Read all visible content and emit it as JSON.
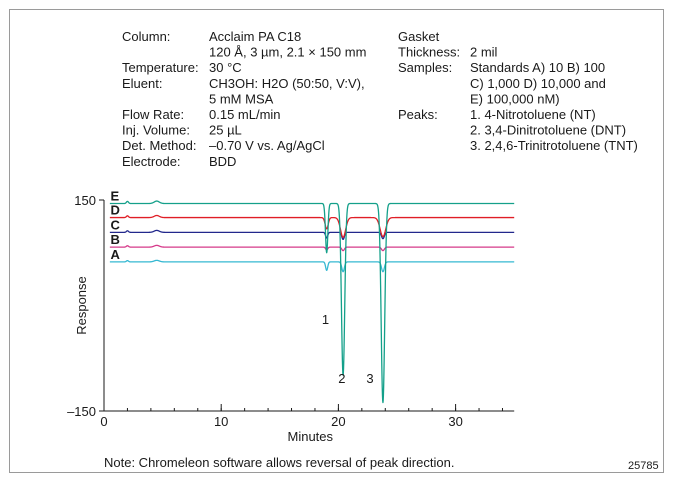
{
  "conditions": [
    {
      "label": "Column:",
      "lines": [
        "Acclaim PA C18",
        "120 Å, 3 µm, 2.1 × 150 mm"
      ]
    },
    {
      "label": "Temperature:",
      "lines": [
        "30 °C"
      ]
    },
    {
      "label": "Eluent:",
      "lines": [
        "CH3OH: H2O (50:50, V:V),",
        "5 mM MSA"
      ]
    },
    {
      "label": "Flow Rate:",
      "lines": [
        "0.15 mL/min"
      ]
    },
    {
      "label": "Inj. Volume:",
      "lines": [
        "25 µL"
      ]
    },
    {
      "label": "Det. Method:",
      "lines": [
        "–0.70 V vs. Ag/AgCl"
      ]
    },
    {
      "label": "Electrode:",
      "lines": [
        "BDD"
      ]
    }
  ],
  "conditions_right": [
    {
      "label": "Gasket",
      "lines": []
    },
    {
      "label": "Thickness:",
      "lines": [
        "2 mil"
      ]
    },
    {
      "label": "Samples:",
      "lines": [
        "Standards A) 10 B) 100",
        "C) 1,000 D) 10,000 and",
        "E) 100,000 nM)"
      ]
    },
    {
      "label": "Peaks:",
      "lines": [
        "1. 4-Nitrotoluene (NT)",
        "2. 3,4-Dinitrotoluene (DNT)",
        "3. 2,4,6-Trinitrotoluene (TNT)"
      ]
    }
  ],
  "note": "Note: Chromeleon software allows reversal of peak direction.",
  "figure_id": "25785",
  "chart_data": {
    "type": "line",
    "xlabel": "Minutes",
    "ylabel": "Response",
    "xlim": [
      0,
      35
    ],
    "ylim": [
      -150,
      150
    ],
    "x_ticks": [
      0,
      10,
      20,
      30
    ],
    "y_tick_labels": [
      "150",
      "–150"
    ],
    "y_ticks": [
      150,
      -150
    ],
    "grid": false,
    "series": [
      {
        "name": "A",
        "color": "#36b8d2",
        "baseline": 62,
        "peaks": [
          [
            2.0,
            1.8,
            0.09
          ],
          [
            4.5,
            2.2,
            0.22
          ],
          [
            19.0,
            -12,
            0.09
          ],
          [
            20.4,
            -14,
            0.11
          ],
          [
            23.8,
            -14,
            0.12
          ]
        ]
      },
      {
        "name": "B",
        "color": "#d63a8a",
        "baseline": 83,
        "peaks": [
          [
            2.0,
            2.0,
            0.09
          ],
          [
            4.5,
            2.5,
            0.22
          ],
          [
            19.0,
            -4,
            0.09
          ],
          [
            20.4,
            -5,
            0.11
          ],
          [
            23.8,
            -5,
            0.12
          ]
        ]
      },
      {
        "name": "C",
        "color": "#22288c",
        "baseline": 104,
        "peaks": [
          [
            2.0,
            2.2,
            0.09
          ],
          [
            4.5,
            2.8,
            0.22
          ],
          [
            19.0,
            -8,
            0.09
          ],
          [
            20.4,
            -10,
            0.11
          ],
          [
            23.8,
            -9,
            0.12
          ]
        ]
      },
      {
        "name": "D",
        "color": "#e01e26",
        "baseline": 125,
        "peaks": [
          [
            2.0,
            2.5,
            0.09
          ],
          [
            4.5,
            3.0,
            0.22
          ],
          [
            19.0,
            -16,
            0.13
          ],
          [
            20.4,
            -28,
            0.22
          ],
          [
            23.8,
            -27,
            0.24
          ]
        ]
      },
      {
        "name": "E",
        "color": "#14a08a",
        "baseline": 145,
        "peaks": [
          [
            2.0,
            3.0,
            0.09
          ],
          [
            4.5,
            3.5,
            0.22
          ],
          [
            19.0,
            -70,
            0.1
          ],
          [
            20.4,
            -244,
            0.14
          ],
          [
            23.8,
            -283,
            0.15
          ]
        ]
      }
    ],
    "peak_labels": [
      {
        "text": "1",
        "x": 18.9,
        "y": -26
      },
      {
        "text": "2",
        "x": 20.3,
        "y": -110
      },
      {
        "text": "3",
        "x": 22.7,
        "y": -110
      }
    ]
  }
}
